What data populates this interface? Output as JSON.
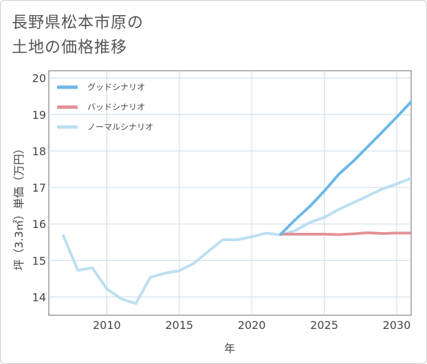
{
  "chart_data": {
    "type": "line",
    "title_lines": [
      "長野県松本市原の",
      "土地の価格推移"
    ],
    "xlabel": "年",
    "ylabel": "坪（3.3㎡）単価（万円）",
    "xlim": [
      2006,
      2031
    ],
    "ylim": [
      13.5,
      20.2
    ],
    "x_ticks": [
      2010,
      2015,
      2020,
      2025,
      2030
    ],
    "y_ticks": [
      14,
      15,
      16,
      17,
      18,
      19,
      20
    ],
    "grid": true,
    "legend_position": "top-left",
    "series": [
      {
        "name": "グッドシナリオ",
        "color": "#6cb8e8",
        "x": [
          2022,
          2023,
          2024,
          2025,
          2026,
          2027,
          2028,
          2029,
          2030,
          2031
        ],
        "values": [
          15.72,
          16.12,
          16.48,
          16.9,
          17.36,
          17.72,
          18.12,
          18.52,
          18.93,
          19.35
        ]
      },
      {
        "name": "バッドシナリオ",
        "color": "#e39198",
        "x": [
          2022,
          2023,
          2024,
          2025,
          2026,
          2027,
          2028,
          2029,
          2030,
          2031
        ],
        "values": [
          15.72,
          15.72,
          15.72,
          15.72,
          15.71,
          15.73,
          15.76,
          15.74,
          15.75,
          15.75
        ]
      },
      {
        "name": "ノーマルシナリオ",
        "color": "#bcdff0",
        "x": [
          2007,
          2008,
          2009,
          2010,
          2011,
          2012,
          2013,
          2014,
          2015,
          2016,
          2017,
          2018,
          2019,
          2020,
          2021,
          2022,
          2023,
          2024,
          2025,
          2026,
          2027,
          2028,
          2029,
          2030,
          2031
        ],
        "values": [
          15.68,
          14.73,
          14.8,
          14.22,
          13.95,
          13.82,
          14.54,
          14.65,
          14.72,
          14.92,
          15.25,
          15.57,
          15.57,
          15.65,
          15.75,
          15.7,
          15.82,
          16.04,
          16.18,
          16.4,
          16.58,
          16.77,
          16.96,
          17.1,
          17.25
        ]
      }
    ]
  }
}
